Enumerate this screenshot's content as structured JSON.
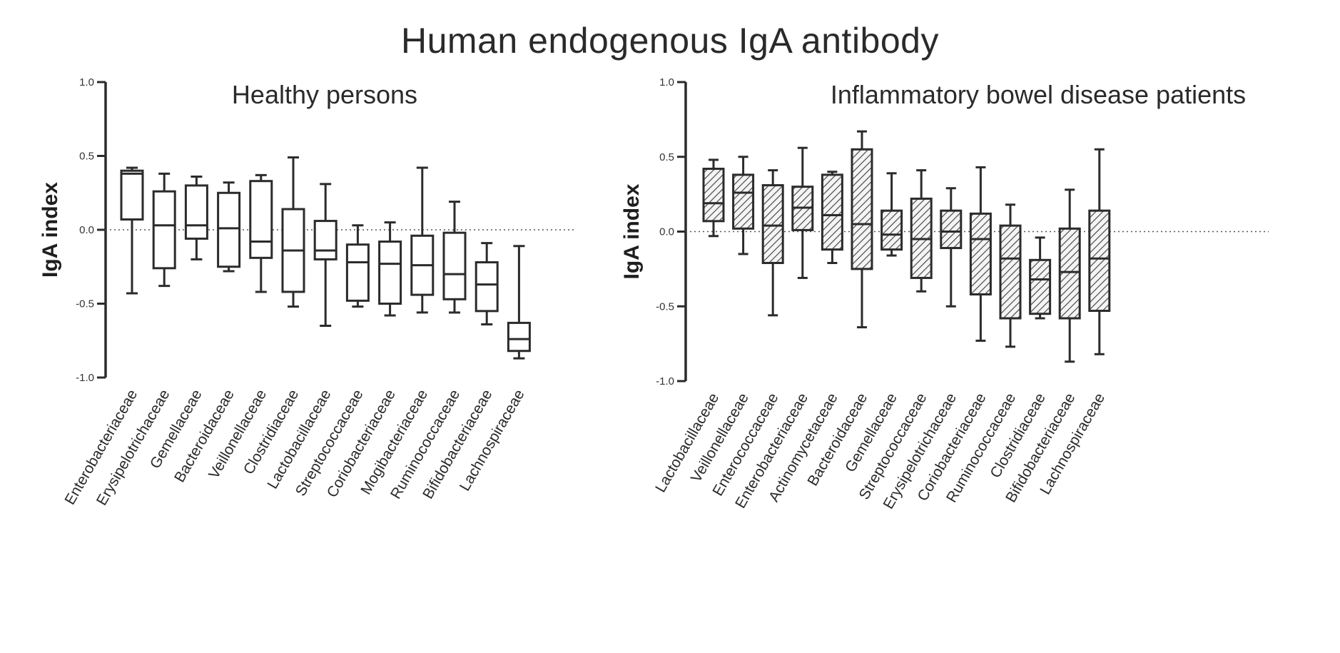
{
  "title": "Human endogenous IgA antibody",
  "chart_data": [
    {
      "type": "box",
      "title": "Healthy persons",
      "ylabel": "IgA index",
      "xlabel": "",
      "ylim": [
        -1.0,
        1.0
      ],
      "yticks": [
        "1.0",
        "0.5",
        "0.0",
        "-0.5",
        "-1.0"
      ],
      "reference_line": 0.0,
      "fill": "none",
      "categories": [
        "Enterobacteriaceae",
        "Erysipelotrichaceae",
        "Gemellaceae",
        "Bacteroidaceae",
        "Veillonellaceae",
        "Clostridiaceae",
        "Lactobacillaceae",
        "Streptococcaceae",
        "Coriobacteriaceae",
        "Mogibacteriaceae",
        "Ruminococcaceae",
        "Bifidobacteriaceae",
        "Lachnospiraceae"
      ],
      "boxes": [
        {
          "min": -0.43,
          "q1": 0.07,
          "median": 0.38,
          "q3": 0.4,
          "max": 0.42
        },
        {
          "min": -0.38,
          "q1": -0.26,
          "median": 0.03,
          "q3": 0.26,
          "max": 0.38
        },
        {
          "min": -0.2,
          "q1": -0.06,
          "median": 0.03,
          "q3": 0.3,
          "max": 0.36
        },
        {
          "min": -0.28,
          "q1": -0.25,
          "median": 0.01,
          "q3": 0.25,
          "max": 0.32
        },
        {
          "min": -0.42,
          "q1": -0.19,
          "median": -0.08,
          "q3": 0.33,
          "max": 0.37
        },
        {
          "min": -0.52,
          "q1": -0.42,
          "median": -0.14,
          "q3": 0.14,
          "max": 0.49
        },
        {
          "min": -0.65,
          "q1": -0.2,
          "median": -0.14,
          "q3": 0.06,
          "max": 0.31
        },
        {
          "min": -0.52,
          "q1": -0.48,
          "median": -0.22,
          "q3": -0.1,
          "max": 0.03
        },
        {
          "min": -0.58,
          "q1": -0.5,
          "median": -0.23,
          "q3": -0.08,
          "max": 0.05
        },
        {
          "min": -0.56,
          "q1": -0.44,
          "median": -0.24,
          "q3": -0.04,
          "max": 0.42
        },
        {
          "min": -0.56,
          "q1": -0.47,
          "median": -0.3,
          "q3": -0.02,
          "max": 0.19
        },
        {
          "min": -0.64,
          "q1": -0.55,
          "median": -0.37,
          "q3": -0.22,
          "max": -0.09
        },
        {
          "min": -0.87,
          "q1": -0.82,
          "median": -0.74,
          "q3": -0.63,
          "max": -0.11
        }
      ]
    },
    {
      "type": "box",
      "title": "Inflammatory bowel disease patients",
      "ylabel": "IgA index",
      "xlabel": "",
      "ylim": [
        -1.0,
        1.0
      ],
      "yticks": [
        "1.0",
        "0.5",
        "0.0",
        "-0.5",
        "-1.0"
      ],
      "reference_line": 0.0,
      "fill": "hatched",
      "categories": [
        "Lactobacillaceae",
        "Veillonellaceae",
        "Enterococcaceae",
        "Enterobacteriaceae",
        "Actinomycetaceae",
        "Bacteroidaceae",
        "Gemellaceae",
        "Streptococcaceae",
        "Erysipelotrichaceae",
        "Coriobacteriaceae",
        "Ruminococcaceae",
        "Clostridiaceae",
        "Bifidobacteriaceae",
        "Lachnospiraceae"
      ],
      "boxes": [
        {
          "min": -0.03,
          "q1": 0.07,
          "median": 0.19,
          "q3": 0.42,
          "max": 0.48
        },
        {
          "min": -0.15,
          "q1": 0.02,
          "median": 0.26,
          "q3": 0.38,
          "max": 0.5
        },
        {
          "min": -0.56,
          "q1": -0.21,
          "median": 0.04,
          "q3": 0.31,
          "max": 0.41
        },
        {
          "min": -0.31,
          "q1": 0.01,
          "median": 0.16,
          "q3": 0.3,
          "max": 0.56
        },
        {
          "min": -0.21,
          "q1": -0.12,
          "median": 0.11,
          "q3": 0.38,
          "max": 0.4
        },
        {
          "min": -0.64,
          "q1": -0.25,
          "median": 0.05,
          "q3": 0.55,
          "max": 0.67
        },
        {
          "min": -0.16,
          "q1": -0.12,
          "median": -0.02,
          "q3": 0.14,
          "max": 0.39
        },
        {
          "min": -0.4,
          "q1": -0.31,
          "median": -0.05,
          "q3": 0.22,
          "max": 0.41
        },
        {
          "min": -0.5,
          "q1": -0.11,
          "median": 0.0,
          "q3": 0.14,
          "max": 0.29
        },
        {
          "min": -0.73,
          "q1": -0.42,
          "median": -0.05,
          "q3": 0.12,
          "max": 0.43
        },
        {
          "min": -0.77,
          "q1": -0.58,
          "median": -0.18,
          "q3": 0.04,
          "max": 0.18
        },
        {
          "min": -0.58,
          "q1": -0.55,
          "median": -0.32,
          "q3": -0.19,
          "max": -0.04
        },
        {
          "min": -0.87,
          "q1": -0.58,
          "median": -0.27,
          "q3": 0.02,
          "max": 0.28
        },
        {
          "min": -0.82,
          "q1": -0.53,
          "median": -0.18,
          "q3": 0.14,
          "max": 0.55
        }
      ]
    }
  ]
}
